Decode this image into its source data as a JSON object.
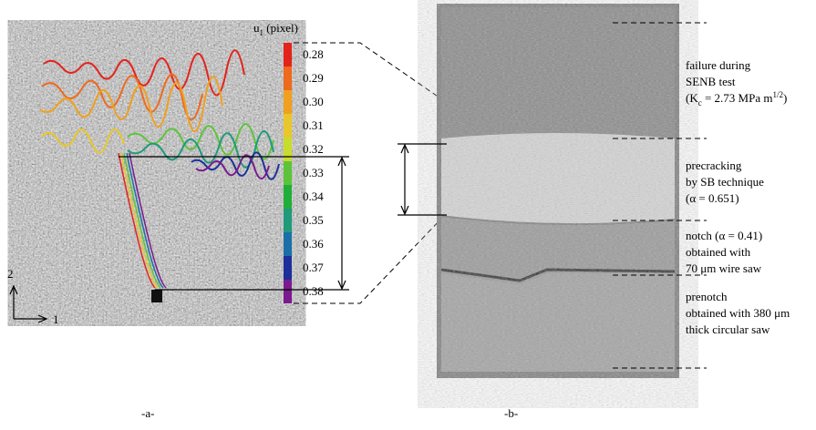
{
  "panel_a": {
    "colorbar": {
      "title": {
        "base": "u",
        "subscript": "1",
        "rest": " (pixel)"
      },
      "labels": [
        "0.28",
        "0.29",
        "0.30",
        "0.31",
        "0.32",
        "0.33",
        "0.34",
        "0.35",
        "0.36",
        "0.37",
        "0.38"
      ],
      "colors": [
        "#e4231c",
        "#ee6a1c",
        "#f0a01e",
        "#e8c72a",
        "#c8dc2c",
        "#5cc43a",
        "#1fae3a",
        "#1f9a7a",
        "#1b6fa8",
        "#1d2f9a",
        "#7a1a8e"
      ]
    },
    "axes": {
      "vertical": "2",
      "horizontal": "1"
    },
    "caption": "-a-"
  },
  "panel_b": {
    "annotations": [
      {
        "lines": [
          "failure during",
          "SENB test"
        ],
        "formula": {
          "open": "(K",
          "subscript": "c",
          "middle": " = 2.73 MPa m",
          "superscript": "1/2",
          "close": ")"
        }
      },
      {
        "lines": [
          "precracking",
          "by SB technique",
          "(α = 0.651)"
        ]
      },
      {
        "lines": [
          "notch (α = 0.41)",
          "obtained with",
          "70 μm wire saw"
        ]
      },
      {
        "lines": [
          "prenotch",
          "obtained with 380 μm",
          "thick circular saw"
        ]
      }
    ],
    "caption": "-b-"
  }
}
